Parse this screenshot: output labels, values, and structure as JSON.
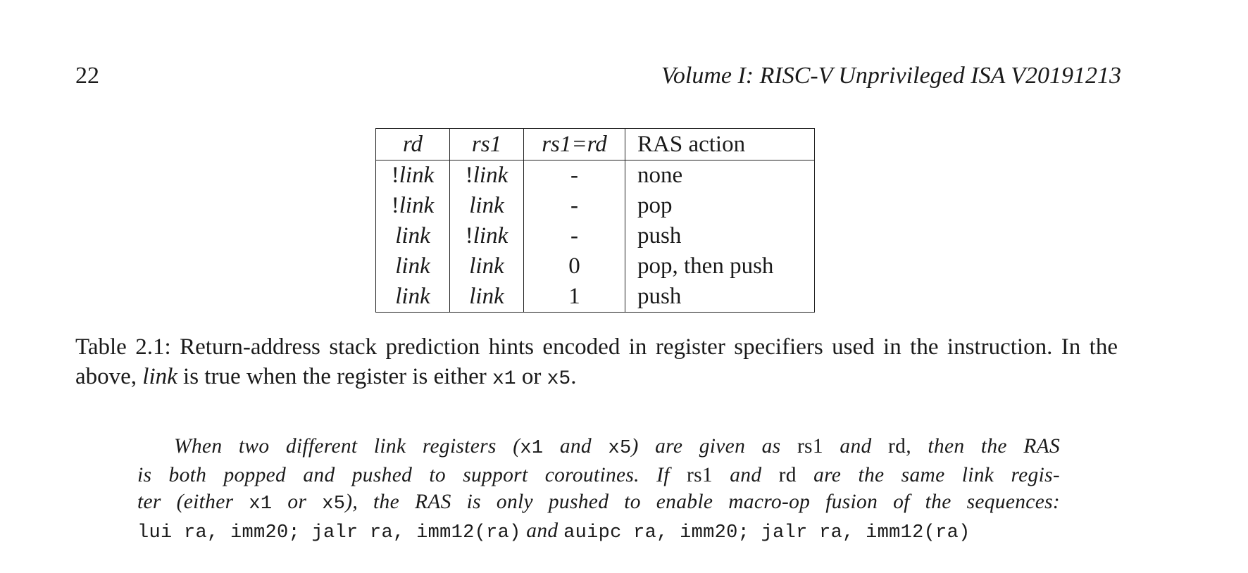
{
  "header": {
    "page_number": "22",
    "running_title": "Volume I: RISC-V Unprivileged ISA V20191213"
  },
  "table": {
    "headers": {
      "rd": "rd",
      "rs1": "rs1",
      "rs1_eq_rd": "rs1=rd",
      "action": "RAS action"
    },
    "rows": [
      {
        "rd_bang": "!",
        "rd": "link",
        "rs1_bang": "!",
        "rs1": "link",
        "eq": "-",
        "action": "none"
      },
      {
        "rd_bang": "!",
        "rd": "link",
        "rs1_bang": "",
        "rs1": "link",
        "eq": "-",
        "action": "pop"
      },
      {
        "rd_bang": "",
        "rd": "link",
        "rs1_bang": "!",
        "rs1": "link",
        "eq": "-",
        "action": "push"
      },
      {
        "rd_bang": "",
        "rd": "link",
        "rs1_bang": "",
        "rs1": "link",
        "eq": "0",
        "action": "pop, then push"
      },
      {
        "rd_bang": "",
        "rd": "link",
        "rs1_bang": "",
        "rs1": "link",
        "eq": "1",
        "action": "push"
      }
    ]
  },
  "caption": {
    "part1": "Table 2.1: Return-address stack prediction hints encoded in register specifiers used in the instruction. In the above, ",
    "link_word": "link",
    "part2": " is true when the register is either ",
    "reg1": "x1",
    "or": " or ",
    "reg2": "x5",
    "end": "."
  },
  "commentary": {
    "l1a": "When two different link registers (",
    "l1b": "x1",
    "l1c": " and ",
    "l1d": "x5",
    "l1e": ") are given as ",
    "l1f": "rs1",
    "l1g": " and ",
    "l1h": "rd",
    "l1i": ", then the RAS",
    "l2a": "is both popped and pushed to support coroutines.  If ",
    "l2b": "rs1",
    "l2c": " and ",
    "l2d": "rd",
    "l2e": " are the same link regis-",
    "l3a": "ter (either ",
    "l3b": "x1",
    "l3c": " or ",
    "l3d": "x5",
    "l3e": "), the RAS is only pushed to enable macro-op fusion of the sequences:",
    "l4a": "lui ra, imm20; jalr ra, imm12(ra)",
    "l4b": " and ",
    "l4c": "auipc ra, imm20; jalr ra, imm12(ra)"
  }
}
